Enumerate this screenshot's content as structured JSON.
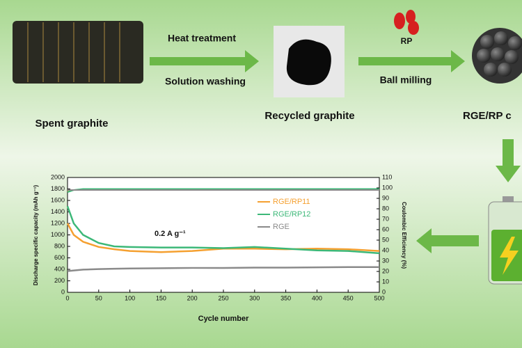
{
  "labels": {
    "heat": "Heat treatment",
    "washing": "Solution washing",
    "spent": "Spent graphite",
    "recycled": "Recycled graphite",
    "rp": "RP",
    "milling": "Ball milling",
    "composite": "RGE/RP c"
  },
  "chart_data": {
    "type": "line",
    "annotation": "0.2 A g⁻¹",
    "xlabel": "Cycle number",
    "ylabel": "Discharge specific capacity (mAh g⁻¹)",
    "y2label": "Coulombic Efficiency (%)",
    "x": [
      0,
      10,
      25,
      50,
      75,
      100,
      150,
      200,
      250,
      300,
      350,
      400,
      450,
      500
    ],
    "series": [
      {
        "name": "RGE/RP11",
        "color": "#f5a030",
        "values": [
          1200,
          1000,
          880,
          790,
          750,
          720,
          700,
          720,
          760,
          760,
          750,
          760,
          750,
          720
        ],
        "ce": [
          97,
          98,
          98,
          98,
          98,
          98,
          98,
          98,
          98,
          98,
          98,
          98,
          98,
          98
        ]
      },
      {
        "name": "RGE/RP12",
        "color": "#3cb878",
        "values": [
          1500,
          1200,
          1000,
          860,
          800,
          790,
          780,
          780,
          770,
          790,
          760,
          730,
          720,
          680
        ],
        "ce": [
          96,
          98,
          99,
          99,
          99,
          99,
          99,
          99,
          99,
          99,
          99,
          99,
          99,
          99
        ]
      },
      {
        "name": "RGE",
        "color": "#8a8a8a",
        "values": [
          370,
          380,
          395,
          405,
          410,
          415,
          420,
          425,
          425,
          430,
          430,
          435,
          440,
          440
        ],
        "ce": [
          98,
          98,
          98,
          98,
          98,
          98,
          98,
          98,
          98,
          98,
          98,
          98,
          98,
          98
        ]
      }
    ],
    "xlim": [
      0,
      500
    ],
    "xticks": [
      0,
      50,
      100,
      150,
      200,
      250,
      300,
      350,
      400,
      450,
      500
    ],
    "ylim": [
      0,
      2000
    ],
    "yticks": [
      0,
      200,
      400,
      600,
      800,
      1000,
      1200,
      1400,
      1600,
      1800,
      2000
    ],
    "y2lim": [
      0,
      110
    ],
    "y2ticks": [
      0,
      10,
      20,
      30,
      40,
      50,
      60,
      70,
      80,
      90,
      100,
      110
    ]
  }
}
